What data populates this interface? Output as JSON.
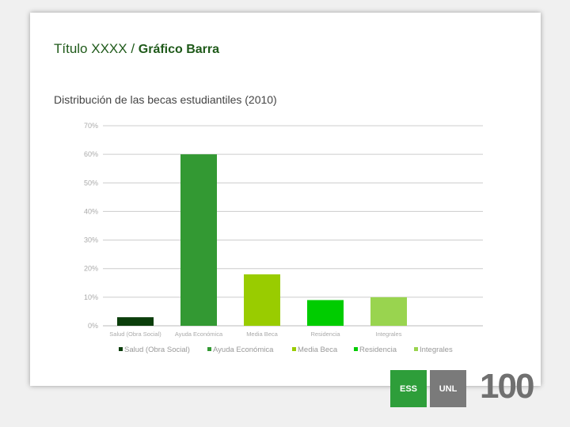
{
  "slide": {
    "title_main": "Título XXXX / ",
    "title_bold": "Gráfico Barra"
  },
  "chart_data": {
    "type": "bar",
    "title": "Distribución de las becas estudiantiles (2010)",
    "categories": [
      "Salud (Obra Social)",
      "Ayuda Económica",
      "Media Beca",
      "Residencia",
      "Integrales"
    ],
    "values": [
      3,
      60,
      18,
      9,
      10
    ],
    "colors": [
      "#0b3d0b",
      "#339933",
      "#99cc00",
      "#00cc00",
      "#99d44f"
    ],
    "yticks": [
      "0%",
      "10%",
      "20%",
      "30%",
      "40%",
      "50%",
      "60%",
      "70%"
    ],
    "ylim": [
      0,
      70
    ],
    "grid": true,
    "legend": "bottom"
  },
  "logos": {
    "ess": "ESS",
    "unl": "UNL",
    "hundred": "100"
  }
}
